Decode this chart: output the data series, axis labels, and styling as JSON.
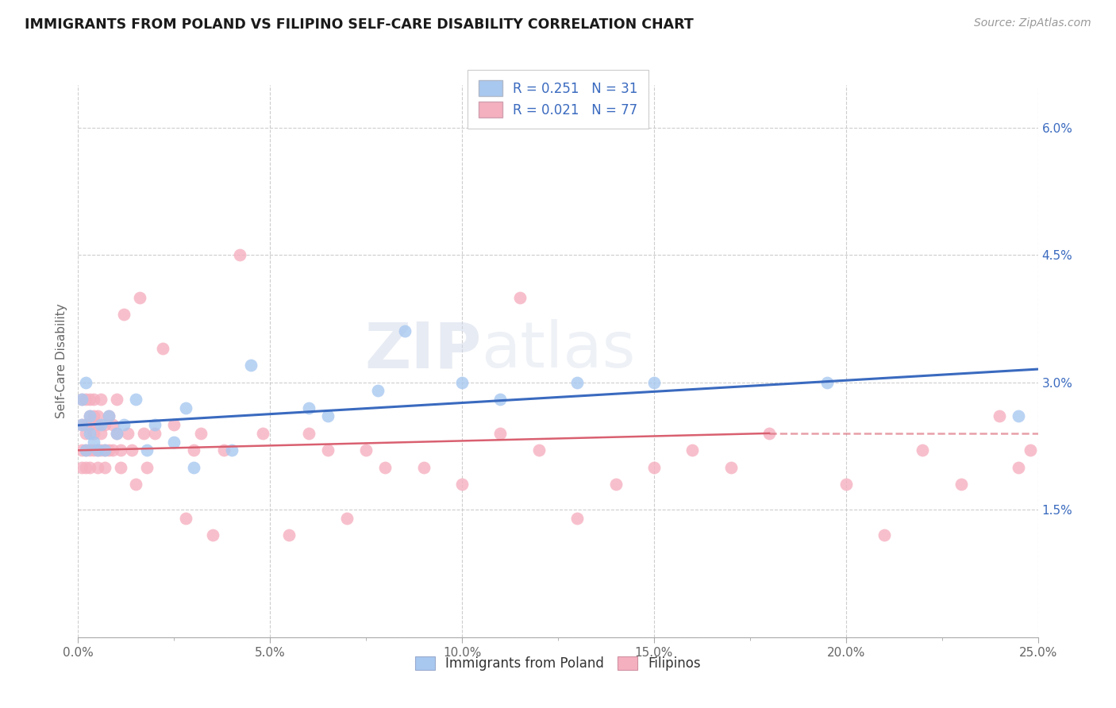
{
  "title": "IMMIGRANTS FROM POLAND VS FILIPINO SELF-CARE DISABILITY CORRELATION CHART",
  "source": "Source: ZipAtlas.com",
  "ylabel_label": "Self-Care Disability",
  "xlim": [
    0.0,
    0.25
  ],
  "ylim": [
    0.0,
    0.065
  ],
  "xticks": [
    0.0,
    0.025,
    0.05,
    0.075,
    0.1,
    0.125,
    0.15,
    0.175,
    0.2,
    0.225,
    0.25
  ],
  "xtick_labels_major": [
    "0.0%",
    "",
    "5.0%",
    "",
    "10.0%",
    "",
    "15.0%",
    "",
    "20.0%",
    "",
    "25.0%"
  ],
  "yticks": [
    0.0,
    0.015,
    0.03,
    0.045,
    0.06
  ],
  "ytick_labels": [
    "",
    "1.5%",
    "3.0%",
    "4.5%",
    "6.0%"
  ],
  "legend_blue_label": "Immigrants from Poland",
  "legend_pink_label": "Filipinos",
  "blue_R": "0.251",
  "blue_N": "31",
  "pink_R": "0.021",
  "pink_N": "77",
  "blue_color": "#a8c8f0",
  "pink_color": "#f5b0c0",
  "trend_blue": "#3a6abf",
  "trend_pink": "#d96070",
  "background_color": "#ffffff",
  "grid_color": "#c8c8c8",
  "poland_x": [
    0.001,
    0.001,
    0.002,
    0.002,
    0.003,
    0.003,
    0.004,
    0.005,
    0.006,
    0.007,
    0.008,
    0.01,
    0.012,
    0.015,
    0.018,
    0.02,
    0.025,
    0.028,
    0.03,
    0.04,
    0.045,
    0.06,
    0.065,
    0.078,
    0.085,
    0.1,
    0.11,
    0.13,
    0.15,
    0.195,
    0.245
  ],
  "poland_y": [
    0.028,
    0.025,
    0.022,
    0.03,
    0.024,
    0.026,
    0.023,
    0.022,
    0.025,
    0.022,
    0.026,
    0.024,
    0.025,
    0.028,
    0.022,
    0.025,
    0.023,
    0.027,
    0.02,
    0.022,
    0.032,
    0.027,
    0.026,
    0.029,
    0.036,
    0.03,
    0.028,
    0.03,
    0.03,
    0.03,
    0.026
  ],
  "filipino_x": [
    0.001,
    0.001,
    0.001,
    0.001,
    0.002,
    0.002,
    0.002,
    0.002,
    0.002,
    0.003,
    0.003,
    0.003,
    0.003,
    0.003,
    0.004,
    0.004,
    0.004,
    0.004,
    0.005,
    0.005,
    0.005,
    0.005,
    0.006,
    0.006,
    0.006,
    0.007,
    0.007,
    0.007,
    0.008,
    0.008,
    0.009,
    0.009,
    0.01,
    0.01,
    0.011,
    0.011,
    0.012,
    0.013,
    0.014,
    0.015,
    0.016,
    0.017,
    0.018,
    0.02,
    0.022,
    0.025,
    0.028,
    0.03,
    0.032,
    0.035,
    0.038,
    0.042,
    0.048,
    0.055,
    0.06,
    0.065,
    0.07,
    0.075,
    0.08,
    0.09,
    0.1,
    0.11,
    0.115,
    0.12,
    0.13,
    0.14,
    0.15,
    0.16,
    0.17,
    0.18,
    0.2,
    0.21,
    0.22,
    0.23,
    0.24,
    0.245,
    0.248
  ],
  "filipino_y": [
    0.025,
    0.022,
    0.028,
    0.02,
    0.024,
    0.022,
    0.025,
    0.028,
    0.02,
    0.026,
    0.022,
    0.025,
    0.02,
    0.028,
    0.024,
    0.022,
    0.026,
    0.028,
    0.026,
    0.022,
    0.02,
    0.025,
    0.024,
    0.028,
    0.022,
    0.025,
    0.022,
    0.02,
    0.026,
    0.022,
    0.025,
    0.022,
    0.024,
    0.028,
    0.022,
    0.02,
    0.038,
    0.024,
    0.022,
    0.018,
    0.04,
    0.024,
    0.02,
    0.024,
    0.034,
    0.025,
    0.014,
    0.022,
    0.024,
    0.012,
    0.022,
    0.045,
    0.024,
    0.012,
    0.024,
    0.022,
    0.014,
    0.022,
    0.02,
    0.02,
    0.018,
    0.024,
    0.04,
    0.022,
    0.014,
    0.018,
    0.02,
    0.022,
    0.02,
    0.024,
    0.018,
    0.012,
    0.022,
    0.018,
    0.026,
    0.02,
    0.022
  ]
}
